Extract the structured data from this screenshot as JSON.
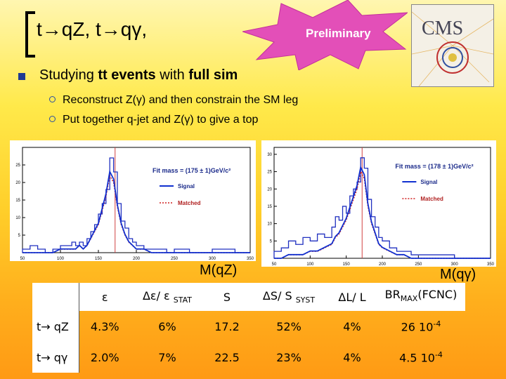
{
  "title": "t→qZ, t→qγ,",
  "badge": "Preliminary",
  "logo": {
    "text": "CMS",
    "icon": "cms-logo-icon"
  },
  "bullet": {
    "prefix": "Studying ",
    "bold1": "tt events",
    "mid": " with ",
    "bold2": "full sim"
  },
  "sub_bullets": [
    "Reconstruct Z(γ) and then constrain the SM leg",
    "Put together q-jet and Z(γ) to give a top"
  ],
  "plots": [
    {
      "fit_label": "Fit mass = (175 ± 1)GeV/c²",
      "legend": [
        "Signal",
        "Matched"
      ],
      "axis_title": "M(qZ)",
      "y_ticks": [
        "25",
        "20",
        "15",
        "10",
        "5"
      ],
      "x_ticks": [
        "50",
        "100",
        "150",
        "200",
        "250",
        "300",
        "350"
      ],
      "chart_data": {
        "type": "line",
        "x": [
          50,
          60,
          70,
          80,
          90,
          100,
          110,
          115,
          120,
          125,
          130,
          135,
          140,
          145,
          150,
          155,
          160,
          165,
          170,
          175,
          180,
          185,
          190,
          195,
          200,
          210,
          220,
          230,
          240,
          250,
          270,
          300,
          330,
          350
        ],
        "series": [
          {
            "name": "Signal",
            "values": [
              1,
              2,
              1,
              0,
              1,
              2,
              2,
              3,
              2,
              3,
              2,
              4,
              6,
              8,
              11,
              14,
              18,
              27,
              23,
              14,
              9,
              7,
              4,
              3,
              2,
              1,
              1,
              1,
              0,
              1,
              0,
              1,
              0,
              0
            ]
          },
          {
            "name": "Matched",
            "values": [
              0,
              0,
              0,
              0,
              0,
              1,
              1,
              1,
              1,
              2,
              1,
              2,
              4,
              6,
              8,
              12,
              16,
              22,
              20,
              13,
              8,
              5,
              3,
              2,
              1,
              1,
              0,
              0,
              0,
              0,
              0,
              0,
              0,
              0
            ]
          }
        ],
        "xlim": [
          50,
          350
        ],
        "ylim": [
          0,
          30
        ]
      }
    },
    {
      "fit_label": "Fit mass = (178 ± 1)GeV/c²",
      "legend": [
        "Signal",
        "Matched"
      ],
      "axis_title": "M(qγ)",
      "y_ticks": [
        "30",
        "25",
        "20",
        "15",
        "10",
        "5"
      ],
      "x_ticks": [
        "50",
        "100",
        "150",
        "200",
        "250",
        "300",
        "350"
      ],
      "chart_data": {
        "type": "line",
        "x": [
          50,
          60,
          70,
          80,
          90,
          100,
          110,
          120,
          130,
          135,
          140,
          145,
          150,
          155,
          160,
          165,
          170,
          175,
          180,
          185,
          190,
          195,
          200,
          210,
          220,
          230,
          240,
          250,
          270,
          300,
          330,
          350
        ],
        "series": [
          {
            "name": "Signal",
            "values": [
              2,
              3,
              5,
              4,
              6,
              5,
              7,
              6,
              9,
              12,
              11,
              15,
              13,
              18,
              20,
              22,
              29,
              26,
              17,
              12,
              9,
              6,
              5,
              3,
              2,
              2,
              1,
              1,
              1,
              0,
              0,
              0
            ]
          },
          {
            "name": "Matched",
            "values": [
              0,
              0,
              1,
              1,
              1,
              2,
              2,
              3,
              4,
              6,
              7,
              9,
              11,
              14,
              17,
              20,
              25,
              23,
              15,
              10,
              7,
              4,
              3,
              2,
              1,
              1,
              0,
              0,
              0,
              0,
              0,
              0
            ]
          }
        ],
        "xlim": [
          50,
          350
        ],
        "ylim": [
          0,
          32
        ]
      }
    }
  ],
  "table": {
    "headers": [
      "",
      "ε",
      "Δε/ ε ",
      "S",
      "ΔS/ S ",
      "ΔL/ L",
      "BR"
    ],
    "header_subs": [
      "",
      "",
      "STAT",
      "",
      "SYST",
      "",
      "MAX"
    ],
    "br_suffix": "(FCNC)",
    "rows": [
      {
        "label": "t→ qZ",
        "cells": [
          "4.3%",
          "6%",
          "17.2",
          "52%",
          "4%"
        ],
        "br": "26 10",
        "br_exp": "-4"
      },
      {
        "label": "t→ qγ",
        "cells": [
          "2.0%",
          "7%",
          "22.5",
          "23%",
          "4%"
        ],
        "br": "4.5 10",
        "br_exp": "-4"
      }
    ]
  }
}
